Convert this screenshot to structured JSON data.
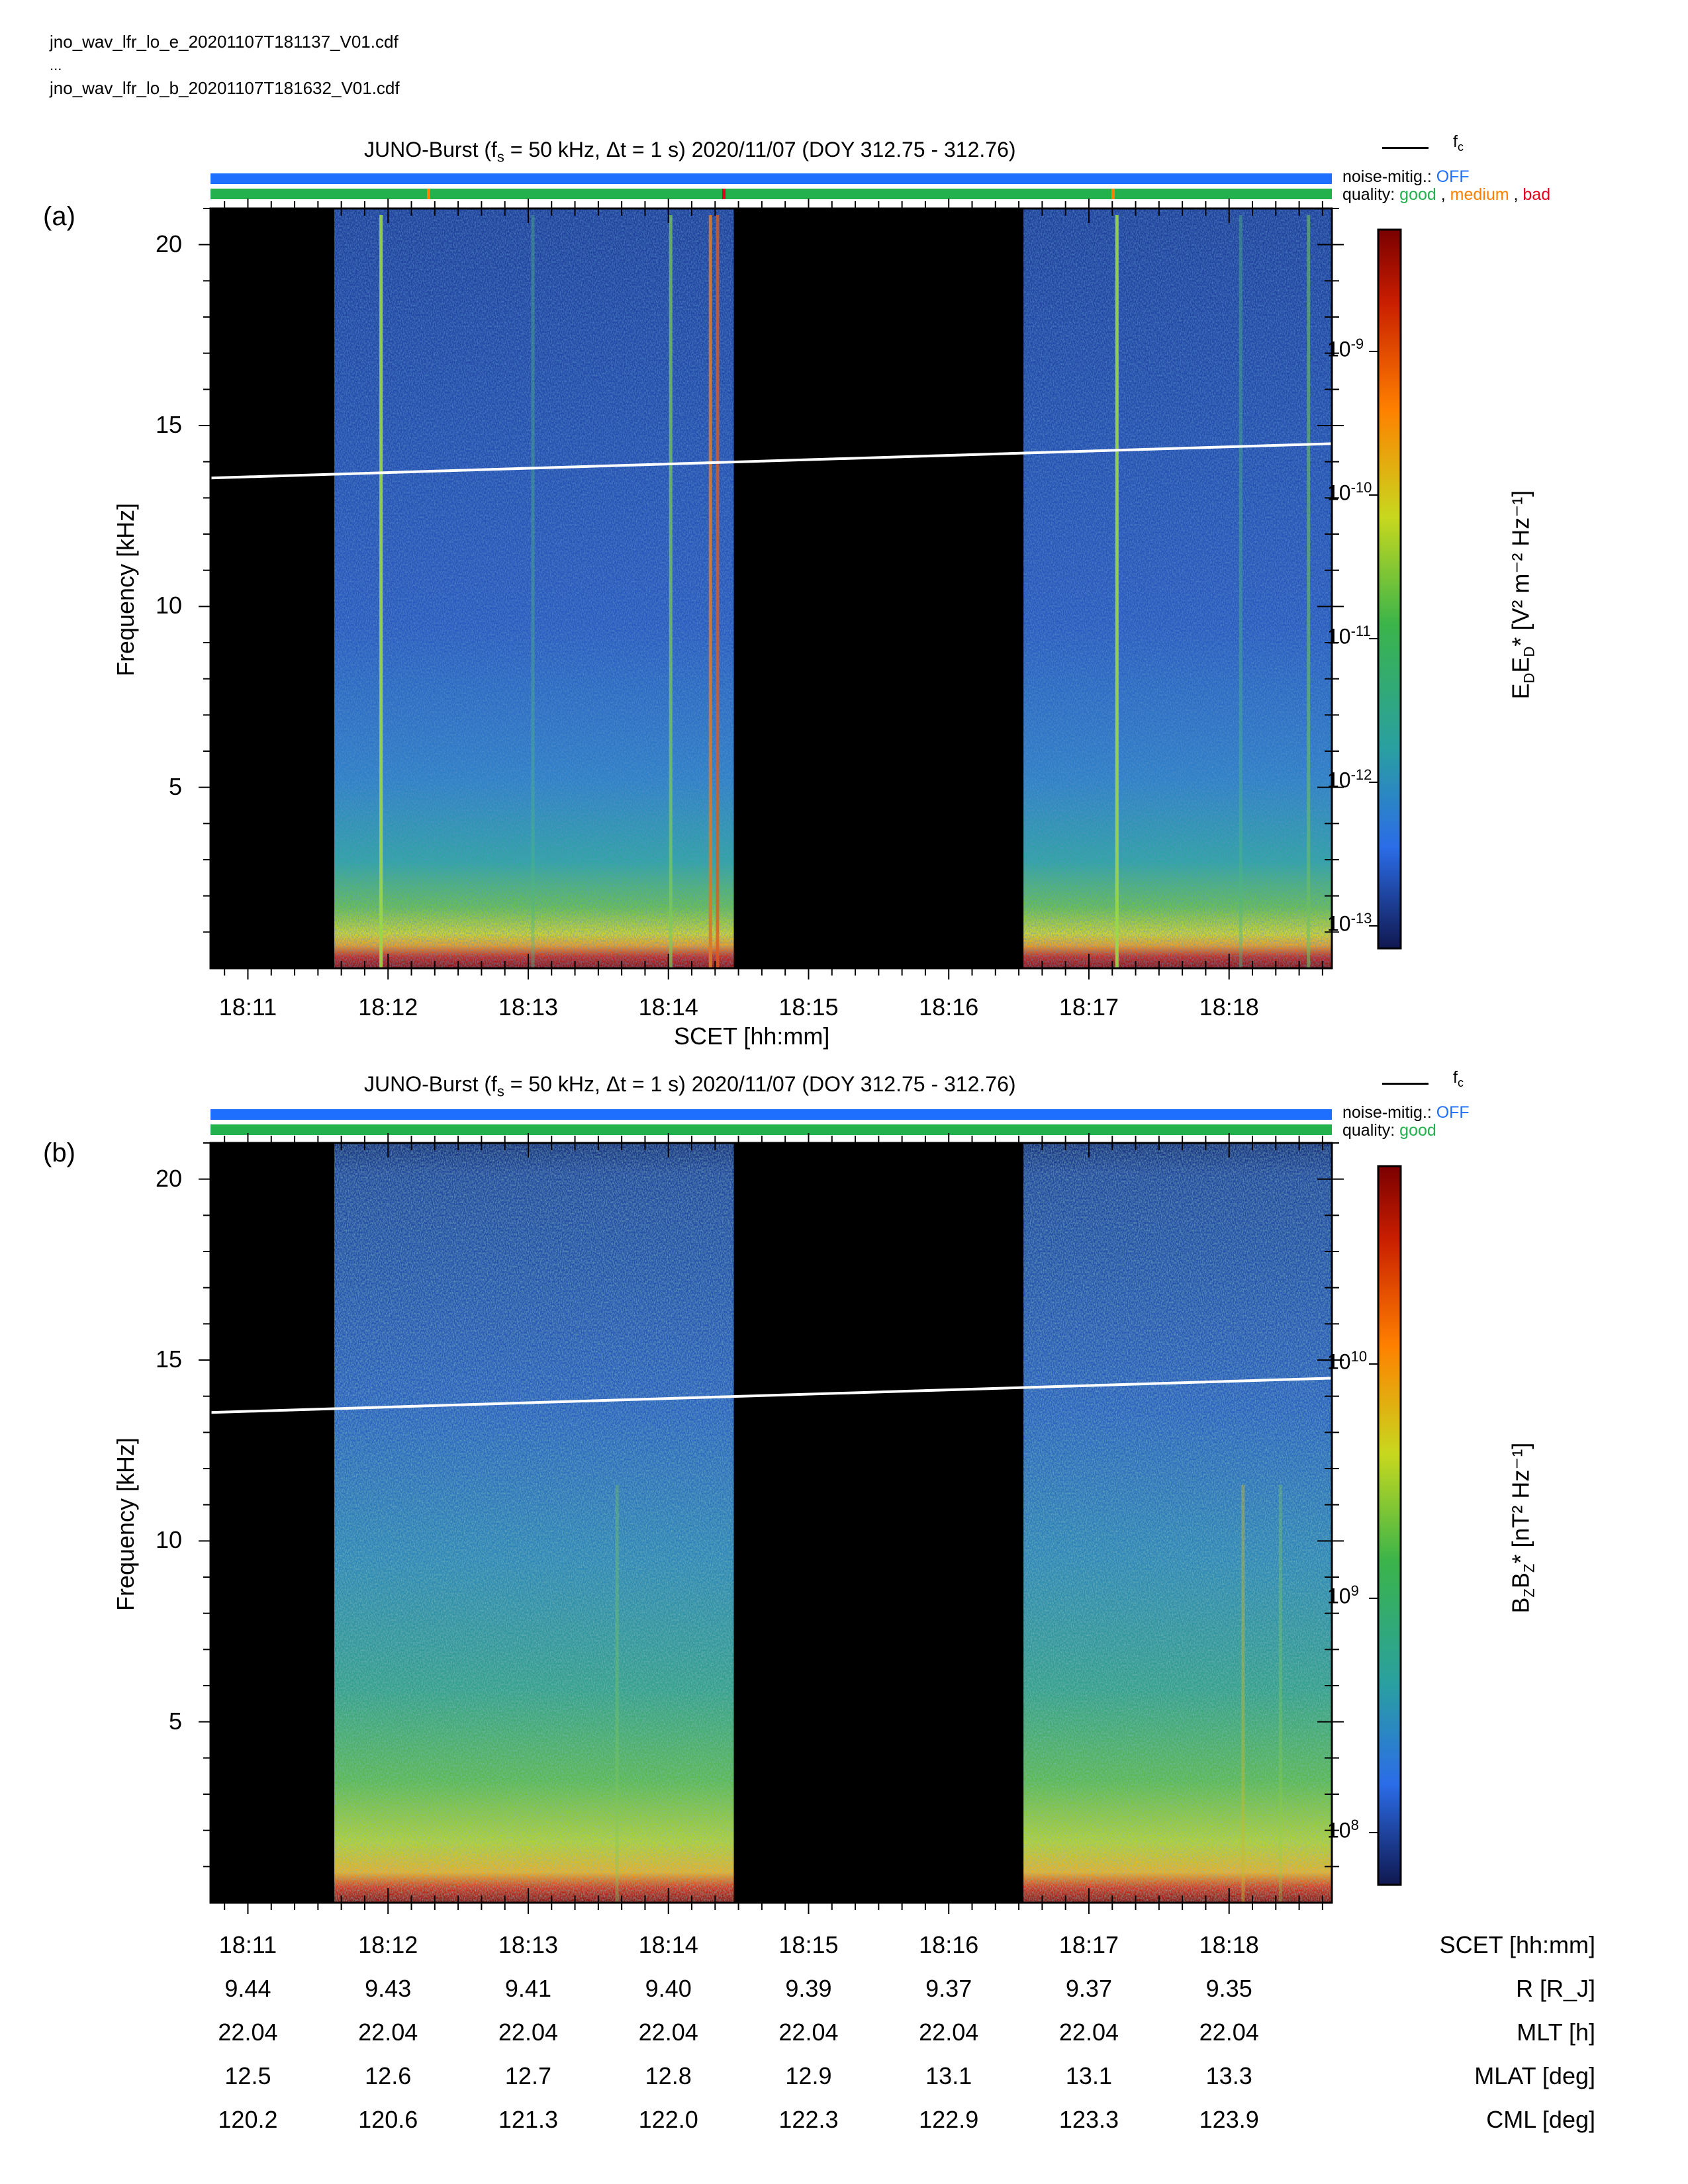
{
  "files": {
    "line1": "jno_wav_lfr_lo_e_20201107T181137_V01.cdf",
    "line2": "...",
    "line3": "jno_wav_lfr_lo_b_20201107T181632_V01.cdf"
  },
  "panels": [
    {
      "label": "(a)",
      "title_pre": "JUNO-Burst (f",
      "title_sub": "s",
      "title_mid": " = 50 kHz, Δt = 1 s)  2020/11/07 (DOY 312.75 - 312.76)",
      "fc_label": "f",
      "fc_sub": "c",
      "noise_label": "noise-mitig.:",
      "noise_value": "OFF",
      "quality_label": "quality:",
      "quality_good": "good",
      "quality_medium": "medium",
      "quality_bad": "bad",
      "ylabel": "Frequency [kHz]",
      "xlabel": "SCET [hh:mm]",
      "cblabel": "E_D E_D* [V² m⁻² Hz⁻¹]",
      "cb_ticks": [
        {
          "base": "10",
          "exp": "-9"
        },
        {
          "base": "10",
          "exp": "-10"
        },
        {
          "base": "10",
          "exp": "-11"
        },
        {
          "base": "10",
          "exp": "-12"
        },
        {
          "base": "10",
          "exp": "-13"
        }
      ]
    },
    {
      "label": "(b)",
      "title_pre": "JUNO-Burst (f",
      "title_sub": "s",
      "title_mid": " = 50 kHz, Δt = 1 s)  2020/11/07 (DOY 312.75 - 312.76)",
      "fc_label": "f",
      "fc_sub": "c",
      "noise_label": "noise-mitig.:",
      "noise_value": "OFF",
      "quality_label": "quality:",
      "quality_good": "good",
      "ylabel": "Frequency [kHz]",
      "cblabel": "B_Z B_Z* [nT² Hz⁻¹]",
      "cb_ticks": [
        {
          "base": "10",
          "exp": "10"
        },
        {
          "base": "10",
          "exp": "9"
        },
        {
          "base": "10",
          "exp": "8"
        }
      ]
    }
  ],
  "chart_data": [
    {
      "type": "heatmap",
      "panel": "a",
      "x_ticks": [
        "18:11",
        "18:12",
        "18:13",
        "18:14",
        "18:15",
        "18:16",
        "18:17",
        "18:18"
      ],
      "y_ticks": [
        "20",
        "15",
        "10",
        "5"
      ],
      "ylim": [
        0,
        21
      ],
      "xlim": [
        "18:10:44",
        "18:18:44"
      ],
      "colorbar_scale": "log",
      "colorbar_range": [
        7e-14,
        7e-09
      ],
      "data_gaps": [
        [
          "18:10:44",
          "18:11:37"
        ],
        [
          "18:14:28",
          "18:16:32"
        ]
      ],
      "fc_line": {
        "x": [
          "18:10:44",
          "18:18:44"
        ],
        "y": [
          13.55,
          14.5
        ]
      },
      "quality_flags": [
        "good",
        "medium",
        "bad"
      ]
    },
    {
      "type": "heatmap",
      "panel": "b",
      "x_ticks": [
        "18:11",
        "18:12",
        "18:13",
        "18:14",
        "18:15",
        "18:16",
        "18:17",
        "18:18"
      ],
      "y_ticks": [
        "20",
        "15",
        "10",
        "5"
      ],
      "ylim": [
        0,
        21
      ],
      "xlim": [
        "18:10:44",
        "18:18:44"
      ],
      "colorbar_scale": "log",
      "colorbar_range": [
        60000000.0,
        70000000000.0
      ],
      "data_gaps": [
        [
          "18:10:44",
          "18:11:37"
        ],
        [
          "18:14:28",
          "18:16:32"
        ]
      ],
      "fc_line": {
        "x": [
          "18:10:44",
          "18:18:44"
        ],
        "y": [
          13.55,
          14.5
        ]
      },
      "quality_flags": [
        "good"
      ]
    }
  ],
  "ephemeris": {
    "row_labels": [
      "SCET [hh:mm]",
      "R [R_J]",
      "MLT [h]",
      "MLAT [deg]",
      "CML [deg]"
    ],
    "columns": [
      {
        "scet": "18:11",
        "r": "9.44",
        "mlt": "22.04",
        "mlat": "12.5",
        "cml": "120.2"
      },
      {
        "scet": "18:12",
        "r": "9.43",
        "mlt": "22.04",
        "mlat": "12.6",
        "cml": "120.6"
      },
      {
        "scet": "18:13",
        "r": "9.41",
        "mlt": "22.04",
        "mlat": "12.7",
        "cml": "121.3"
      },
      {
        "scet": "18:14",
        "r": "9.40",
        "mlt": "22.04",
        "mlat": "12.8",
        "cml": "122.0"
      },
      {
        "scet": "18:15",
        "r": "9.39",
        "mlt": "22.04",
        "mlat": "12.9",
        "cml": "122.3"
      },
      {
        "scet": "18:16",
        "r": "9.37",
        "mlt": "22.04",
        "mlat": "13.1",
        "cml": "122.9"
      },
      {
        "scet": "18:17",
        "r": "9.37",
        "mlt": "22.04",
        "mlat": "13.1",
        "cml": "123.3"
      },
      {
        "scet": "18:18",
        "r": "9.35",
        "mlt": "22.04",
        "mlat": "13.3",
        "cml": "123.9"
      }
    ]
  },
  "colors": {
    "noise_bar": "#1f6fff",
    "quality_good": "#22b14c",
    "quality_medium": "#ff7f00",
    "quality_bad": "#e3001b",
    "gap": "#000000",
    "fc_line": "#ffffff"
  }
}
